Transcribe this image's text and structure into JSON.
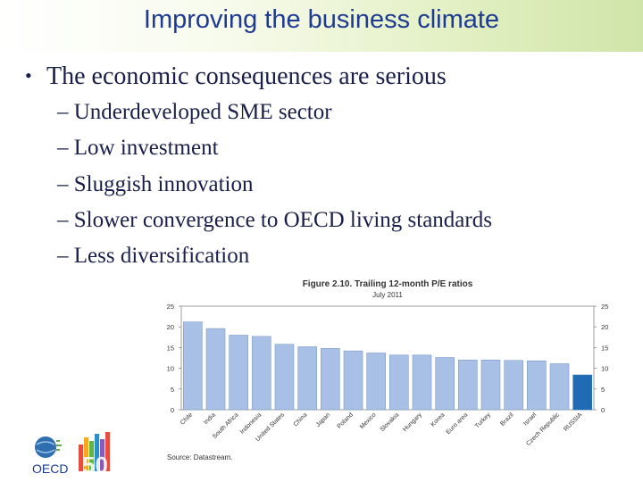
{
  "slide": {
    "title": "Improving the business climate",
    "bullet": "The economic consequences are serious",
    "sub_bullets": [
      "Underdeveloped SME sector",
      "Low investment",
      "Sluggish innovation",
      "Slower convergence to OECD living standards",
      "Less diversification"
    ],
    "source": "Source: Datastream.",
    "logo_text": "OECD",
    "logo_number": "50"
  },
  "chart_data": {
    "type": "bar",
    "title": "Figure 2.10.  Trailing 12-month P/E ratios",
    "subtitle": "July 2011",
    "categories": [
      "Chile",
      "India",
      "South Africa",
      "Indonesia",
      "United States",
      "China",
      "Japan",
      "Poland",
      "Mexico",
      "Slovakia",
      "Hungary",
      "Korea",
      "Euro area",
      "Turkey",
      "Brazil",
      "Israel",
      "Czech Republic",
      "RUSSIA"
    ],
    "values": [
      21.2,
      19.6,
      18.0,
      17.7,
      15.8,
      15.2,
      14.8,
      14.2,
      13.7,
      13.2,
      13.2,
      12.6,
      12.0,
      12.0,
      11.9,
      11.8,
      11.1,
      8.4
    ],
    "highlight": "RUSSIA",
    "ylim": [
      0,
      25
    ],
    "yticks": [
      0,
      5,
      10,
      15,
      20,
      25
    ],
    "colors": {
      "bar": "#a9c0e6",
      "highlight": "#1f6cb5",
      "edge": "#6f8fbf"
    },
    "grid": false,
    "legend": "none"
  }
}
